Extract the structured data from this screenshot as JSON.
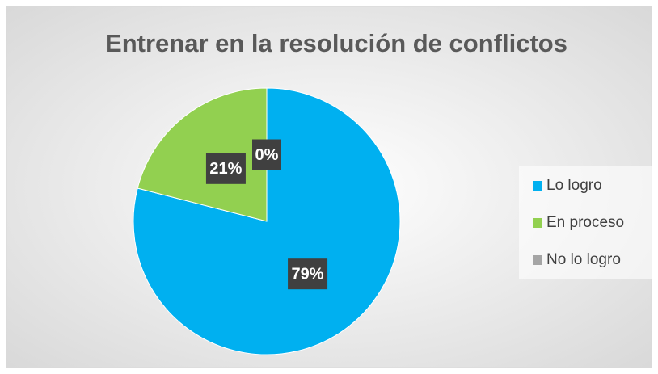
{
  "chart_data": {
    "type": "pie",
    "title": "Entrenar en la resolución de conflictos",
    "categories": [
      "Lo logro",
      "En proceso",
      "No lo logro"
    ],
    "values": [
      79,
      21,
      0
    ],
    "value_labels": [
      "79%",
      "21%",
      "0%"
    ],
    "colors": [
      "#00b0f0",
      "#92d050",
      "#a5a5a5"
    ],
    "legend": "right"
  }
}
